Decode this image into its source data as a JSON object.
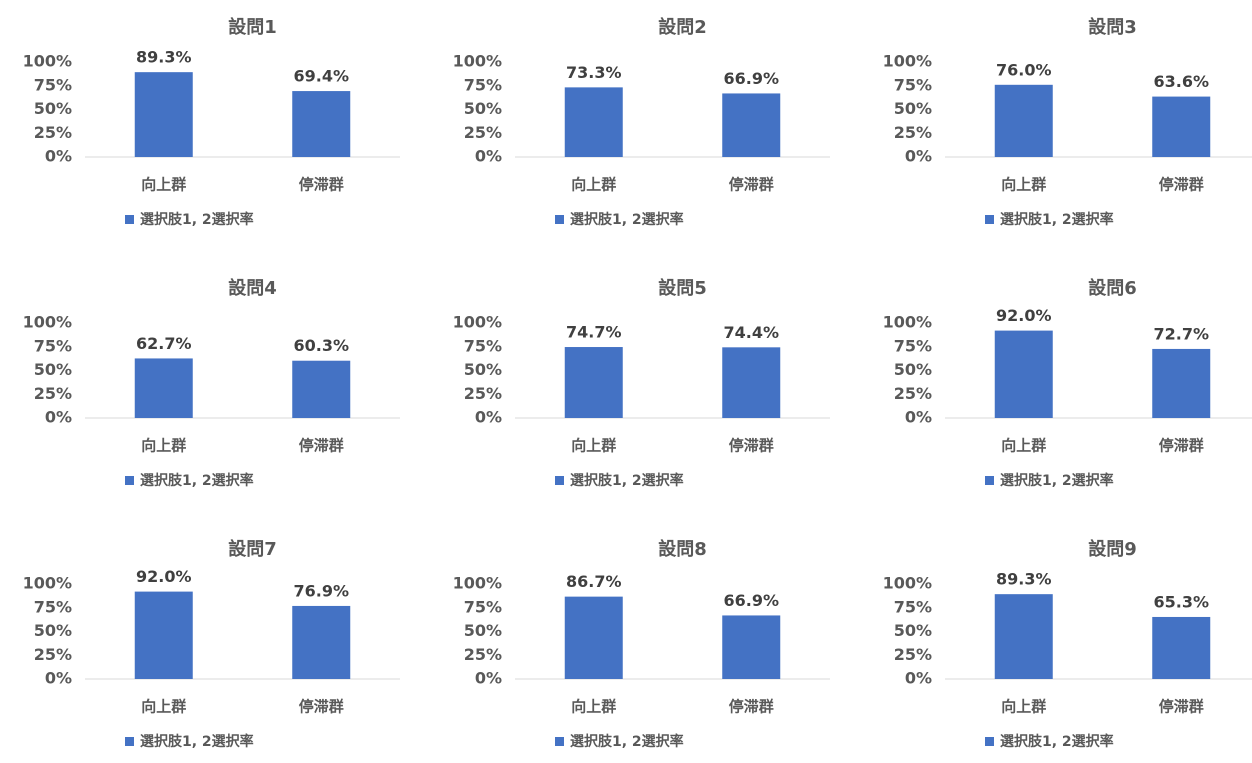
{
  "chart_data": [
    {
      "type": "bar",
      "title": "設問1",
      "categories": [
        "向上群",
        "停滞群"
      ],
      "series": [
        {
          "name": "選択肢1, 2選択率",
          "color": "#4472c4",
          "values": [
            89.3,
            69.4
          ],
          "value_labels": [
            "89.3%",
            "69.4%"
          ]
        }
      ],
      "ylim": [
        0,
        100
      ],
      "yticks": [
        {
          "value": 0,
          "label": "0%"
        },
        {
          "value": 25,
          "label": "25%"
        },
        {
          "value": 50,
          "label": "50%"
        },
        {
          "value": 75,
          "label": "75%"
        },
        {
          "value": 100,
          "label": "100%"
        }
      ],
      "legend": "bottom"
    },
    {
      "type": "bar",
      "title": "設問2",
      "categories": [
        "向上群",
        "停滞群"
      ],
      "series": [
        {
          "name": "選択肢1, 2選択率",
          "color": "#4472c4",
          "values": [
            73.3,
            66.9
          ],
          "value_labels": [
            "73.3%",
            "66.9%"
          ]
        }
      ],
      "ylim": [
        0,
        100
      ],
      "yticks": [
        {
          "value": 0,
          "label": "0%"
        },
        {
          "value": 25,
          "label": "25%"
        },
        {
          "value": 50,
          "label": "50%"
        },
        {
          "value": 75,
          "label": "75%"
        },
        {
          "value": 100,
          "label": "100%"
        }
      ],
      "legend": "bottom"
    },
    {
      "type": "bar",
      "title": "設問3",
      "categories": [
        "向上群",
        "停滞群"
      ],
      "series": [
        {
          "name": "選択肢1, 2選択率",
          "color": "#4472c4",
          "values": [
            76.0,
            63.6
          ],
          "value_labels": [
            "76.0%",
            "63.6%"
          ]
        }
      ],
      "ylim": [
        0,
        100
      ],
      "yticks": [
        {
          "value": 0,
          "label": "0%"
        },
        {
          "value": 25,
          "label": "25%"
        },
        {
          "value": 50,
          "label": "50%"
        },
        {
          "value": 75,
          "label": "75%"
        },
        {
          "value": 100,
          "label": "100%"
        }
      ],
      "legend": "bottom"
    },
    {
      "type": "bar",
      "title": "設問4",
      "categories": [
        "向上群",
        "停滞群"
      ],
      "series": [
        {
          "name": "選択肢1, 2選択率",
          "color": "#4472c4",
          "values": [
            62.7,
            60.3
          ],
          "value_labels": [
            "62.7%",
            "60.3%"
          ]
        }
      ],
      "ylim": [
        0,
        100
      ],
      "yticks": [
        {
          "value": 0,
          "label": "0%"
        },
        {
          "value": 25,
          "label": "25%"
        },
        {
          "value": 50,
          "label": "50%"
        },
        {
          "value": 75,
          "label": "75%"
        },
        {
          "value": 100,
          "label": "100%"
        }
      ],
      "legend": "bottom"
    },
    {
      "type": "bar",
      "title": "設問5",
      "categories": [
        "向上群",
        "停滞群"
      ],
      "series": [
        {
          "name": "選択肢1, 2選択率",
          "color": "#4472c4",
          "values": [
            74.7,
            74.4
          ],
          "value_labels": [
            "74.7%",
            "74.4%"
          ]
        }
      ],
      "ylim": [
        0,
        100
      ],
      "yticks": [
        {
          "value": 0,
          "label": "0%"
        },
        {
          "value": 25,
          "label": "25%"
        },
        {
          "value": 50,
          "label": "50%"
        },
        {
          "value": 75,
          "label": "75%"
        },
        {
          "value": 100,
          "label": "100%"
        }
      ],
      "legend": "bottom"
    },
    {
      "type": "bar",
      "title": "設問6",
      "categories": [
        "向上群",
        "停滞群"
      ],
      "series": [
        {
          "name": "選択肢1, 2選択率",
          "color": "#4472c4",
          "values": [
            92.0,
            72.7
          ],
          "value_labels": [
            "92.0%",
            "72.7%"
          ]
        }
      ],
      "ylim": [
        0,
        100
      ],
      "yticks": [
        {
          "value": 0,
          "label": "0%"
        },
        {
          "value": 25,
          "label": "25%"
        },
        {
          "value": 50,
          "label": "50%"
        },
        {
          "value": 75,
          "label": "75%"
        },
        {
          "value": 100,
          "label": "100%"
        }
      ],
      "legend": "bottom"
    },
    {
      "type": "bar",
      "title": "設問7",
      "categories": [
        "向上群",
        "停滞群"
      ],
      "series": [
        {
          "name": "選択肢1, 2選択率",
          "color": "#4472c4",
          "values": [
            92.0,
            76.9
          ],
          "value_labels": [
            "92.0%",
            "76.9%"
          ]
        }
      ],
      "ylim": [
        0,
        100
      ],
      "yticks": [
        {
          "value": 0,
          "label": "0%"
        },
        {
          "value": 25,
          "label": "25%"
        },
        {
          "value": 50,
          "label": "50%"
        },
        {
          "value": 75,
          "label": "75%"
        },
        {
          "value": 100,
          "label": "100%"
        }
      ],
      "legend": "bottom"
    },
    {
      "type": "bar",
      "title": "設問8",
      "categories": [
        "向上群",
        "停滞群"
      ],
      "series": [
        {
          "name": "選択肢1, 2選択率",
          "color": "#4472c4",
          "values": [
            86.7,
            66.9
          ],
          "value_labels": [
            "86.7%",
            "66.9%"
          ]
        }
      ],
      "ylim": [
        0,
        100
      ],
      "yticks": [
        {
          "value": 0,
          "label": "0%"
        },
        {
          "value": 25,
          "label": "25%"
        },
        {
          "value": 50,
          "label": "50%"
        },
        {
          "value": 75,
          "label": "75%"
        },
        {
          "value": 100,
          "label": "100%"
        }
      ],
      "legend": "bottom"
    },
    {
      "type": "bar",
      "title": "設問9",
      "categories": [
        "向上群",
        "停滞群"
      ],
      "series": [
        {
          "name": "選択肢1, 2選択率",
          "color": "#4472c4",
          "values": [
            89.3,
            65.3
          ],
          "value_labels": [
            "89.3%",
            "65.3%"
          ]
        }
      ],
      "ylim": [
        0,
        100
      ],
      "yticks": [
        {
          "value": 0,
          "label": "0%"
        },
        {
          "value": 25,
          "label": "25%"
        },
        {
          "value": 50,
          "label": "50%"
        },
        {
          "value": 75,
          "label": "75%"
        },
        {
          "value": 100,
          "label": "100%"
        }
      ],
      "legend": "bottom"
    }
  ]
}
